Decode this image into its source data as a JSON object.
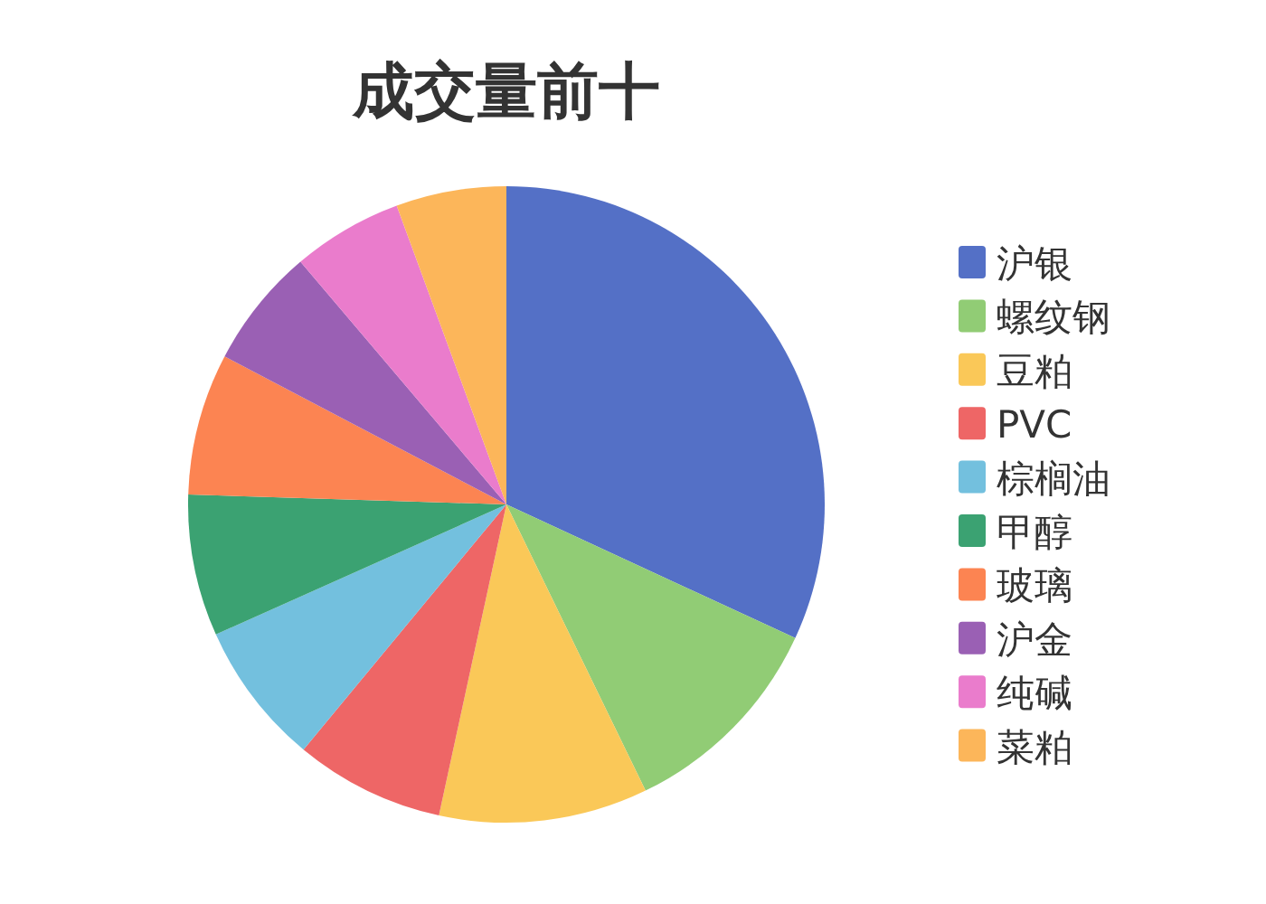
{
  "chart_data": {
    "type": "pie",
    "title": "成交量前十",
    "categories": [
      "沪银",
      "螺纹钢",
      "豆粕",
      "PVC",
      "棕榈油",
      "甲醇",
      "玻璃",
      "沪金",
      "纯碱",
      "菜粕"
    ],
    "values": [
      31.9,
      10.9,
      10.6,
      7.6,
      7.3,
      7.2,
      7.2,
      6.1,
      5.6,
      5.6
    ],
    "colors": [
      "#5470c6",
      "#91cc75",
      "#fac858",
      "#ee6666",
      "#73c0de",
      "#3ba272",
      "#fc8452",
      "#9a60b4",
      "#ea7ccc",
      "#fcb65a"
    ],
    "legend": "right"
  }
}
